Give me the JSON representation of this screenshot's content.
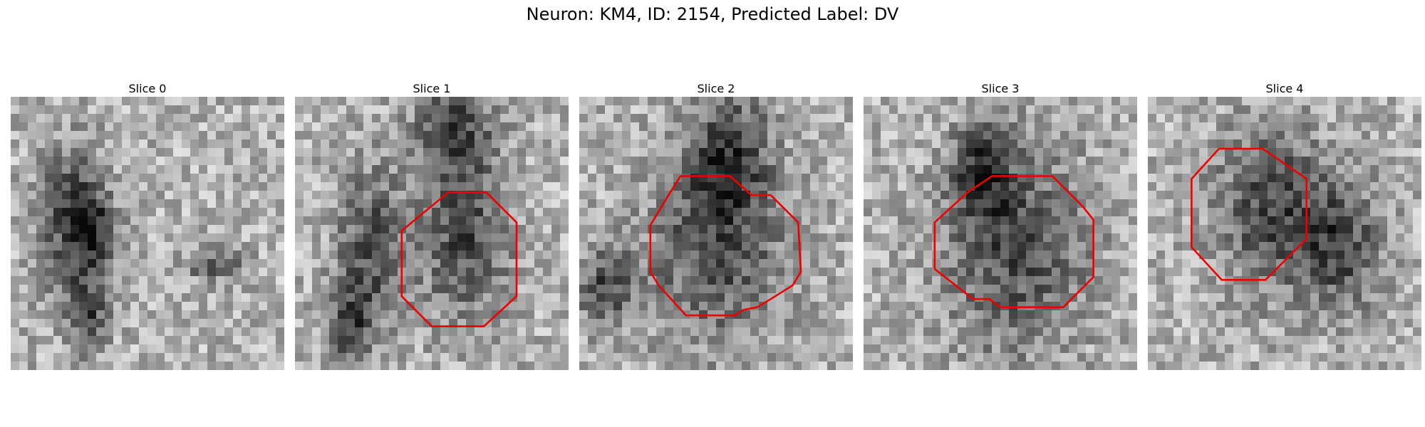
{
  "figure": {
    "title": "Neuron: KM4, ID: 2154, Predicted Label: DV"
  },
  "overlay_color": "#ee0000",
  "slices": [
    {
      "title": "Slice 0",
      "has_contour": false,
      "dark_spots": [
        [
          0.22,
          0.45,
          0.12,
          0.55
        ],
        [
          0.3,
          0.5,
          0.08,
          0.3
        ],
        [
          0.28,
          0.8,
          0.07,
          0.25
        ],
        [
          0.75,
          0.62,
          0.1,
          0.1
        ]
      ],
      "contour": []
    },
    {
      "title": "Slice 1",
      "has_contour": true,
      "dark_spots": [
        [
          0.28,
          0.55,
          0.12,
          0.55
        ],
        [
          0.62,
          0.52,
          0.16,
          0.6
        ],
        [
          0.58,
          0.12,
          0.14,
          0.35
        ],
        [
          0.2,
          0.85,
          0.08,
          0.3
        ]
      ],
      "contour": [
        [
          0.56,
          0.35
        ],
        [
          0.7,
          0.35
        ],
        [
          0.81,
          0.46
        ],
        [
          0.81,
          0.73
        ],
        [
          0.69,
          0.84
        ],
        [
          0.5,
          0.84
        ],
        [
          0.39,
          0.73
        ],
        [
          0.39,
          0.49
        ]
      ]
    },
    {
      "title": "Slice 2",
      "has_contour": true,
      "dark_spots": [
        [
          0.5,
          0.55,
          0.24,
          0.7
        ],
        [
          0.55,
          0.2,
          0.14,
          0.45
        ],
        [
          0.1,
          0.7,
          0.1,
          0.3
        ]
      ],
      "contour": [
        [
          0.37,
          0.29
        ],
        [
          0.55,
          0.29
        ],
        [
          0.63,
          0.36
        ],
        [
          0.7,
          0.36
        ],
        [
          0.8,
          0.46
        ],
        [
          0.81,
          0.64
        ],
        [
          0.78,
          0.69
        ],
        [
          0.7,
          0.74
        ],
        [
          0.65,
          0.77
        ],
        [
          0.6,
          0.78
        ],
        [
          0.57,
          0.8
        ],
        [
          0.39,
          0.8
        ],
        [
          0.29,
          0.69
        ],
        [
          0.26,
          0.64
        ],
        [
          0.26,
          0.47
        ],
        [
          0.32,
          0.37
        ]
      ]
    },
    {
      "title": "Slice 3",
      "has_contour": true,
      "dark_spots": [
        [
          0.55,
          0.55,
          0.26,
          0.75
        ],
        [
          0.43,
          0.28,
          0.1,
          0.35
        ]
      ],
      "contour": [
        [
          0.47,
          0.29
        ],
        [
          0.69,
          0.29
        ],
        [
          0.8,
          0.4
        ],
        [
          0.84,
          0.45
        ],
        [
          0.84,
          0.66
        ],
        [
          0.73,
          0.77
        ],
        [
          0.5,
          0.77
        ],
        [
          0.46,
          0.74
        ],
        [
          0.4,
          0.74
        ],
        [
          0.26,
          0.63
        ],
        [
          0.26,
          0.46
        ],
        [
          0.38,
          0.35
        ]
      ]
    },
    {
      "title": "Slice 4",
      "has_contour": true,
      "dark_spots": [
        [
          0.45,
          0.4,
          0.2,
          0.6
        ],
        [
          0.7,
          0.55,
          0.16,
          0.45
        ]
      ],
      "contour": [
        [
          0.26,
          0.19
        ],
        [
          0.42,
          0.19
        ],
        [
          0.58,
          0.3
        ],
        [
          0.58,
          0.52
        ],
        [
          0.43,
          0.67
        ],
        [
          0.27,
          0.67
        ],
        [
          0.16,
          0.55
        ],
        [
          0.16,
          0.3
        ]
      ]
    }
  ]
}
